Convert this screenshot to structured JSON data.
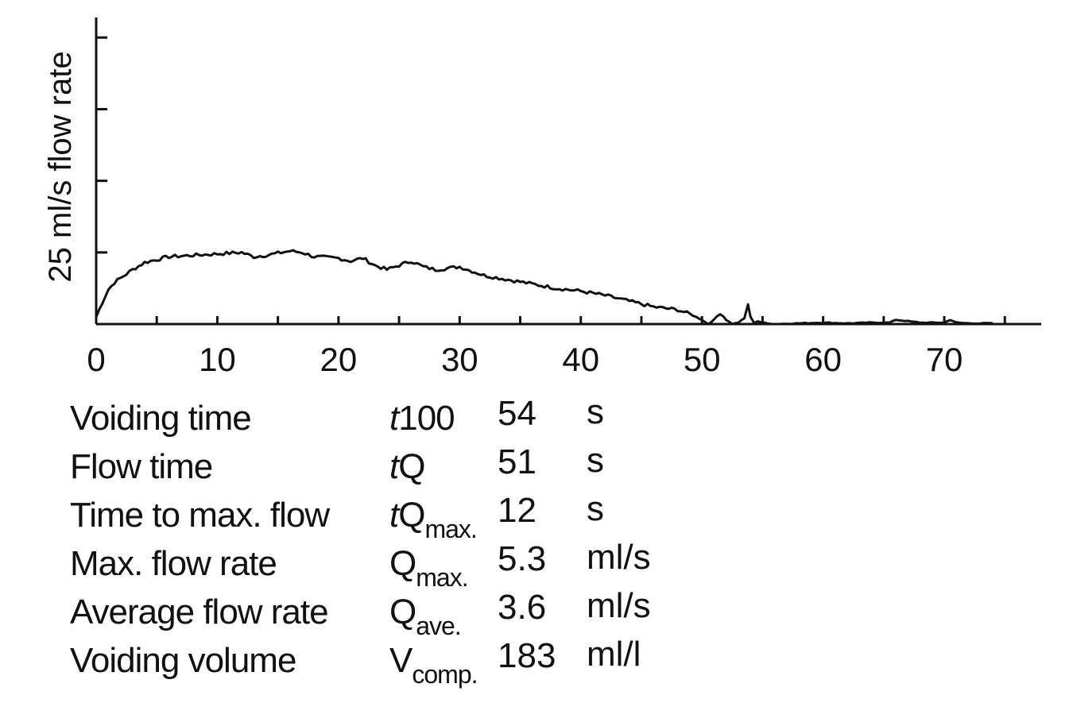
{
  "chart_data": {
    "type": "line",
    "title": "",
    "xlabel": "",
    "ylabel": "25 ml/s flow rate",
    "xlim": [
      0,
      78
    ],
    "ylim": [
      0,
      21.4
    ],
    "x_ticks": [
      0,
      10,
      20,
      30,
      40,
      50,
      60,
      70
    ],
    "x_minor_ticks": [
      5,
      15,
      25,
      35,
      45,
      55,
      65,
      75
    ],
    "y_ticks": [
      5,
      10,
      15,
      20
    ],
    "series": [
      {
        "name": "flow rate",
        "x": [
          0,
          0.5,
          1,
          1.5,
          2,
          3,
          4,
          5,
          6,
          8,
          10,
          12,
          13,
          14,
          16,
          17,
          18,
          20,
          21,
          22,
          23,
          24,
          26,
          27,
          28,
          29,
          30,
          31,
          32,
          34,
          36,
          38,
          40,
          42,
          43,
          44,
          46,
          48,
          49,
          50,
          50.5,
          51,
          51.5,
          52,
          52.5,
          53,
          53.5,
          53.8,
          54,
          54.3,
          54.6,
          55,
          56,
          58,
          60,
          62,
          64,
          65.5,
          66,
          68,
          70,
          70.5,
          71,
          72,
          74
        ],
        "y": [
          0.5,
          1.5,
          2.4,
          2.9,
          3.2,
          3.8,
          4.3,
          4.5,
          4.7,
          4.8,
          4.9,
          5.0,
          4.7,
          4.8,
          5.1,
          5.0,
          4.7,
          4.6,
          4.4,
          4.6,
          4.1,
          3.8,
          4.4,
          4.0,
          3.8,
          3.9,
          4.0,
          3.7,
          3.4,
          3.1,
          2.8,
          2.5,
          2.3,
          2.0,
          1.8,
          1.6,
          1.2,
          1.0,
          0.7,
          0.3,
          0.0,
          0.3,
          0.8,
          0.3,
          0.0,
          0.1,
          0.4,
          1.4,
          0.5,
          0.1,
          0.2,
          0.1,
          0.0,
          0.05,
          0.1,
          0.05,
          0.1,
          0.1,
          0.3,
          0.1,
          0.1,
          0.3,
          0.1,
          0.05,
          0.05
        ]
      }
    ]
  },
  "parameters": [
    {
      "label": "Voiding time",
      "sym_italic": "t",
      "sym_main": "100",
      "sym_sub": "",
      "value": "54",
      "unit": "s"
    },
    {
      "label": "Flow time",
      "sym_italic": "t",
      "sym_main": "Q",
      "sym_sub": "",
      "value": "51",
      "unit": "s"
    },
    {
      "label": "Time to max. flow",
      "sym_italic": "t",
      "sym_main": "Q",
      "sym_sub": "max.",
      "value": "12",
      "unit": "s"
    },
    {
      "label": "Max. flow rate",
      "sym_italic": "",
      "sym_main": "Q",
      "sym_sub": "max.",
      "value": "5.3",
      "unit": "ml/s"
    },
    {
      "label": "Average flow rate",
      "sym_italic": "",
      "sym_main": "Q",
      "sym_sub": "ave.",
      "value": "3.6",
      "unit": "ml/s"
    },
    {
      "label": "Voiding volume",
      "sym_italic": "",
      "sym_main": "V",
      "sym_sub": "comp.",
      "value": "183",
      "unit": "ml/l"
    }
  ]
}
